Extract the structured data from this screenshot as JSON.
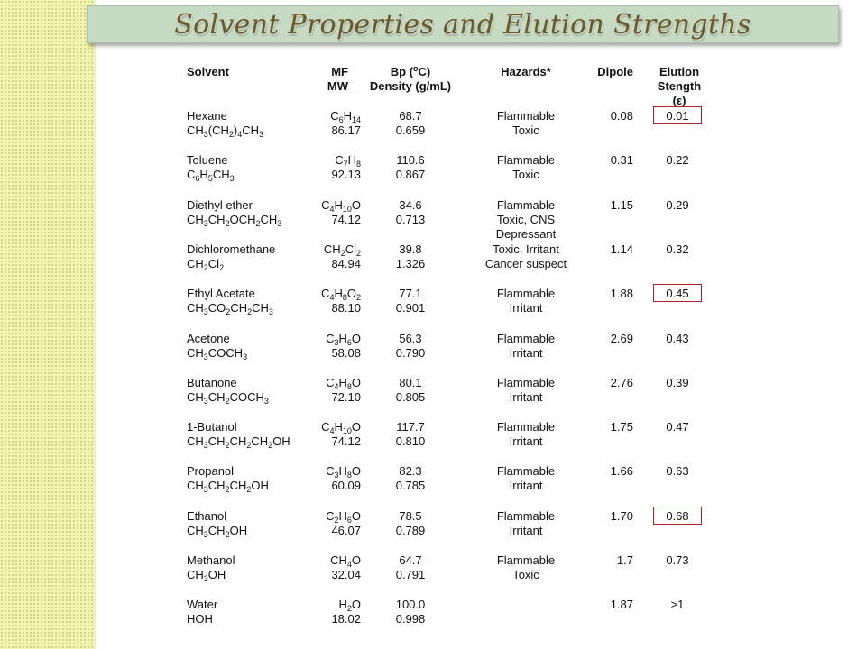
{
  "title": "Solvent Properties and Elution Strengths",
  "headers": {
    "solvent": "Solvent",
    "mf_mw": [
      "MF",
      "MW"
    ],
    "bp_density": [
      "Bp (°C)",
      "Density (g/mL)"
    ],
    "hazards": "Hazards*",
    "dipole": "Dipole",
    "elution": [
      "Elution",
      "Stength",
      "(ε)"
    ]
  },
  "rows": [
    {
      "name": "Hexane",
      "formula": "CH3(CH2)4CH3",
      "mf": "C6H14",
      "mw": "86.17",
      "bp": "68.7",
      "density": "0.659",
      "hazards": [
        "Flammable",
        "Toxic"
      ],
      "dipole": "0.08",
      "elution": "0.01",
      "highlight": true
    },
    {
      "name": "Toluene",
      "formula": "C6H5CH3",
      "mf": "C7H8",
      "mw": "92.13",
      "bp": "110.6",
      "density": "0.867",
      "hazards": [
        "Flammable",
        "Toxic"
      ],
      "dipole": "0.31",
      "elution": "0.22",
      "highlight": false
    },
    {
      "name": "Diethyl ether",
      "formula": "CH3CH2OCH2CH3",
      "mf": "C4H10O",
      "mw": "74.12",
      "bp": "34.6",
      "density": "0.713",
      "hazards": [
        "Flammable",
        "Toxic, CNS",
        "Depressant"
      ],
      "dipole": "1.15",
      "elution": "0.29",
      "highlight": false
    },
    {
      "name": "Dichloromethane",
      "formula": "CH2Cl2",
      "mf": "CH2Cl2",
      "mw": "84.94",
      "bp": "39.8",
      "density": "1.326",
      "hazards": [
        "Toxic, Irritant",
        "Cancer suspect"
      ],
      "dipole": "1.14",
      "elution": "0.32",
      "highlight": false
    },
    {
      "name": "Ethyl Acetate",
      "formula": "CH3CO2CH2CH3",
      "mf": "C4H8O2",
      "mw": "88.10",
      "bp": "77.1",
      "density": "0.901",
      "hazards": [
        "Flammable",
        "Irritant"
      ],
      "dipole": "1.88",
      "elution": "0.45",
      "highlight": true
    },
    {
      "name": "Acetone",
      "formula": "CH3COCH3",
      "mf": "C3H6O",
      "mw": "58.08",
      "bp": "56.3",
      "density": "0.790",
      "hazards": [
        "Flammable",
        "Irritant"
      ],
      "dipole": "2.69",
      "elution": "0.43",
      "highlight": false
    },
    {
      "name": "Butanone",
      "formula": "CH3CH2COCH3",
      "mf": "C4H8O",
      "mw": "72.10",
      "bp": "80.1",
      "density": "0.805",
      "hazards": [
        "Flammable",
        "Irritant"
      ],
      "dipole": "2.76",
      "elution": "0.39",
      "highlight": false
    },
    {
      "name": "1-Butanol",
      "formula": "CH3CH2CH2CH2OH",
      "mf": "C4H10O",
      "mw": "74.12",
      "bp": "117.7",
      "density": "0.810",
      "hazards": [
        "Flammable",
        "Irritant"
      ],
      "dipole": "1.75",
      "elution": "0.47",
      "highlight": false
    },
    {
      "name": "Propanol",
      "formula": "CH3CH2CH2OH",
      "mf": "C3H8O",
      "mw": "60.09",
      "bp": "82.3",
      "density": "0.785",
      "hazards": [
        "Flammable",
        "Irritant"
      ],
      "dipole": "1.66",
      "elution": "0.63",
      "highlight": false
    },
    {
      "name": "Ethanol",
      "formula": "CH3CH2OH",
      "mf": "C2H6O",
      "mw": "46.07",
      "bp": "78.5",
      "density": "0.789",
      "hazards": [
        "Flammable",
        "Irritant"
      ],
      "dipole": "1.70",
      "elution": "0.68",
      "highlight": true
    },
    {
      "name": "Methanol",
      "formula": "CH3OH",
      "mf": "CH4O",
      "mw": "32.04",
      "bp": "64.7",
      "density": "0.791",
      "hazards": [
        "Flammable",
        "Toxic"
      ],
      "dipole": "1.7",
      "elution": "0.73",
      "highlight": false
    },
    {
      "name": "Water",
      "formula": "HOH",
      "mf": "H2O",
      "mw": "18.02",
      "bp": "100.0",
      "density": "0.998",
      "hazards": [],
      "dipole": "1.87",
      "elution": ">1",
      "highlight": false
    }
  ]
}
